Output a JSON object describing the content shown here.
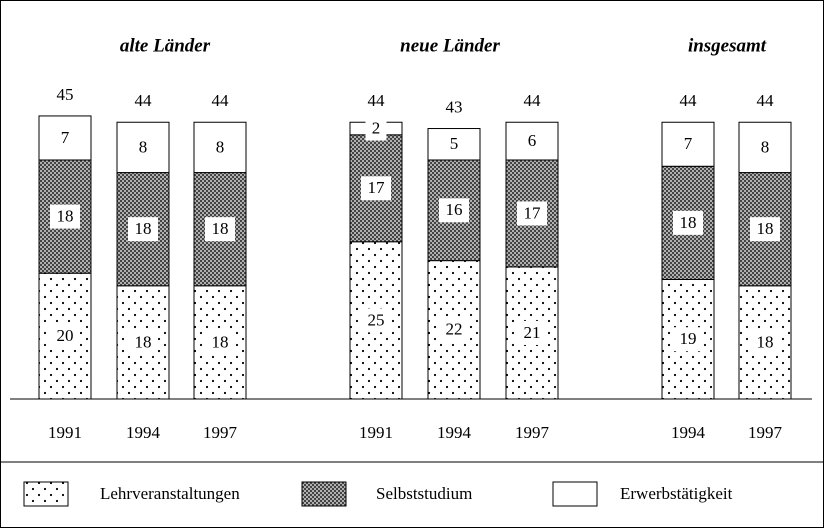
{
  "chart_data": {
    "type": "bar",
    "stacked": true,
    "series": [
      {
        "name": "Lehrveranstaltungen",
        "pattern": "dots"
      },
      {
        "name": "Selbststudium",
        "pattern": "crosshatch"
      },
      {
        "name": "Erwerbstätigkeit",
        "pattern": "none"
      }
    ],
    "panels": [
      {
        "title": "alte Länder",
        "categories": [
          "1991",
          "1994",
          "1997"
        ],
        "totals": [
          45,
          44,
          44
        ],
        "values": [
          [
            20,
            18,
            18
          ],
          [
            18,
            18,
            18
          ],
          [
            7,
            8,
            8
          ]
        ]
      },
      {
        "title": "neue Länder",
        "categories": [
          "1991",
          "1994",
          "1997"
        ],
        "totals": [
          44,
          43,
          44
        ],
        "values": [
          [
            25,
            22,
            21
          ],
          [
            17,
            16,
            17
          ],
          [
            2,
            5,
            6
          ]
        ]
      },
      {
        "title": "insgesamt",
        "categories": [
          "1994",
          "1997"
        ],
        "totals": [
          44,
          44
        ],
        "values": [
          [
            19,
            18
          ],
          [
            18,
            18
          ],
          [
            7,
            8
          ]
        ]
      }
    ]
  }
}
